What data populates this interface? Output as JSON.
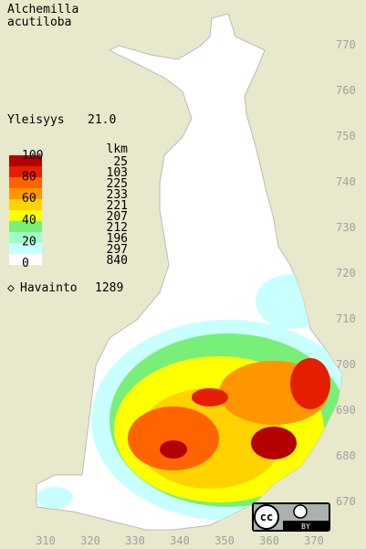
{
  "title": [
    "Alchemilla",
    "acutiloba"
  ],
  "frequency": {
    "label": "Yleisyys",
    "value": "21.0"
  },
  "legend": {
    "count_header": "lkm",
    "levels": [
      100,
      80,
      60,
      40,
      20,
      0
    ],
    "counts": [
      25,
      103,
      225,
      233,
      221,
      207,
      212,
      196,
      297,
      840
    ]
  },
  "observations": {
    "label": "Havainto",
    "count": 1289
  },
  "axes": {
    "north": [
      770,
      760,
      750,
      740,
      730,
      720,
      710,
      700,
      690,
      680,
      670
    ],
    "east": [
      310,
      320,
      330,
      340,
      350,
      360,
      370
    ]
  },
  "license": {
    "cc": "cc",
    "by": "BY"
  }
}
